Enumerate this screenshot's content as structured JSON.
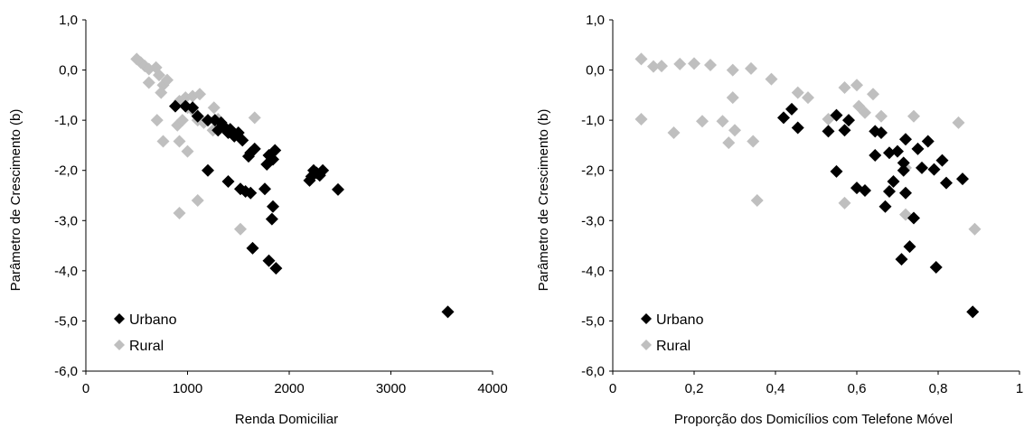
{
  "chart_data": [
    {
      "type": "scatter",
      "xlabel": "Renda Domiciliar",
      "ylabel": "Parâmetro de Crescimento (b)",
      "xlim": [
        0,
        4000
      ],
      "ylim": [
        -6.0,
        1.0
      ],
      "xticks": [
        "0",
        "1000",
        "2000",
        "3000",
        "4000"
      ],
      "yticks": [
        "1,0",
        "0,0",
        "-1,0",
        "-2,0",
        "-3,0",
        "-4,0",
        "-5,0",
        "-6,0"
      ],
      "legend": "bottom-left",
      "grid": false,
      "series": [
        {
          "name": "Urbano",
          "color": "#000000",
          "marker": "diamond",
          "points": [
            [
              880,
              -0.72
            ],
            [
              980,
              -0.72
            ],
            [
              1050,
              -0.75
            ],
            [
              1100,
              -0.92
            ],
            [
              1200,
              -1.0
            ],
            [
              1270,
              -1.0
            ],
            [
              1300,
              -1.2
            ],
            [
              1330,
              -1.05
            ],
            [
              1370,
              -1.15
            ],
            [
              1400,
              -1.25
            ],
            [
              1420,
              -1.18
            ],
            [
              1460,
              -1.32
            ],
            [
              1500,
              -1.25
            ],
            [
              1540,
              -1.4
            ],
            [
              1600,
              -1.72
            ],
            [
              1620,
              -1.65
            ],
            [
              1660,
              -1.57
            ],
            [
              1780,
              -1.88
            ],
            [
              1800,
              -1.7
            ],
            [
              1840,
              -1.78
            ],
            [
              1860,
              -1.6
            ],
            [
              1200,
              -2.0
            ],
            [
              1400,
              -2.22
            ],
            [
              1520,
              -2.37
            ],
            [
              1570,
              -2.42
            ],
            [
              1620,
              -2.45
            ],
            [
              1760,
              -2.37
            ],
            [
              1840,
              -2.72
            ],
            [
              1830,
              -2.97
            ],
            [
              1640,
              -3.55
            ],
            [
              1800,
              -3.8
            ],
            [
              1870,
              -3.95
            ],
            [
              2200,
              -2.2
            ],
            [
              2220,
              -2.12
            ],
            [
              2240,
              -2.0
            ],
            [
              2270,
              -2.05
            ],
            [
              2300,
              -2.1
            ],
            [
              2330,
              -2.0
            ],
            [
              2480,
              -2.38
            ],
            [
              3560,
              -4.82
            ]
          ]
        },
        {
          "name": "Rural",
          "color": "#bfbfbf",
          "marker": "diamond",
          "points": [
            [
              500,
              0.22
            ],
            [
              540,
              0.15
            ],
            [
              580,
              0.08
            ],
            [
              620,
              0.02
            ],
            [
              690,
              0.05
            ],
            [
              620,
              -0.25
            ],
            [
              720,
              -0.1
            ],
            [
              760,
              -0.3
            ],
            [
              800,
              -0.2
            ],
            [
              740,
              -0.45
            ],
            [
              700,
              -1.0
            ],
            [
              760,
              -1.42
            ],
            [
              920,
              -0.62
            ],
            [
              980,
              -0.55
            ],
            [
              1050,
              -0.52
            ],
            [
              1120,
              -0.48
            ],
            [
              1000,
              -0.75
            ],
            [
              900,
              -1.1
            ],
            [
              950,
              -1.0
            ],
            [
              1050,
              -0.8
            ],
            [
              1100,
              -1.0
            ],
            [
              1160,
              -1.05
            ],
            [
              1260,
              -0.75
            ],
            [
              1300,
              -0.98
            ],
            [
              1250,
              -1.2
            ],
            [
              920,
              -1.42
            ],
            [
              1000,
              -1.62
            ],
            [
              1100,
              -2.6
            ],
            [
              920,
              -2.85
            ],
            [
              1660,
              -0.95
            ],
            [
              1520,
              -3.17
            ]
          ]
        }
      ]
    },
    {
      "type": "scatter",
      "xlabel": "Proporção dos Domicílios com Telefone Móvel",
      "ylabel": "Parâmetro de Crescimento (b)",
      "xlim": [
        0,
        1
      ],
      "ylim": [
        -6.0,
        1.0
      ],
      "xticks": [
        "0",
        "0,2",
        "0,4",
        "0,6",
        "0,8",
        "1"
      ],
      "yticks": [
        "1,0",
        "0,0",
        "-1,0",
        "-2,0",
        "-3,0",
        "-4,0",
        "-5,0",
        "-6,0"
      ],
      "legend": "bottom-left",
      "grid": false,
      "series": [
        {
          "name": "Urbano",
          "color": "#000000",
          "marker": "diamond",
          "points": [
            [
              0.42,
              -0.95
            ],
            [
              0.44,
              -0.78
            ],
            [
              0.455,
              -1.15
            ],
            [
              0.53,
              -1.22
            ],
            [
              0.55,
              -0.9
            ],
            [
              0.57,
              -1.2
            ],
            [
              0.58,
              -1.0
            ],
            [
              0.55,
              -2.02
            ],
            [
              0.6,
              -2.35
            ],
            [
              0.62,
              -2.4
            ],
            [
              0.645,
              -1.22
            ],
            [
              0.66,
              -1.25
            ],
            [
              0.645,
              -1.7
            ],
            [
              0.68,
              -1.65
            ],
            [
              0.7,
              -1.62
            ],
            [
              0.69,
              -2.22
            ],
            [
              0.68,
              -2.42
            ],
            [
              0.67,
              -2.72
            ],
            [
              0.72,
              -1.38
            ],
            [
              0.715,
              -1.85
            ],
            [
              0.715,
              -2.0
            ],
            [
              0.72,
              -2.45
            ],
            [
              0.74,
              -2.95
            ],
            [
              0.73,
              -3.52
            ],
            [
              0.71,
              -3.77
            ],
            [
              0.75,
              -1.57
            ],
            [
              0.76,
              -1.95
            ],
            [
              0.775,
              -1.42
            ],
            [
              0.79,
              -1.98
            ],
            [
              0.81,
              -1.8
            ],
            [
              0.82,
              -2.25
            ],
            [
              0.86,
              -2.17
            ],
            [
              0.795,
              -3.93
            ],
            [
              0.885,
              -4.82
            ]
          ]
        },
        {
          "name": "Rural",
          "color": "#bfbfbf",
          "marker": "diamond",
          "points": [
            [
              0.07,
              0.22
            ],
            [
              0.1,
              0.07
            ],
            [
              0.12,
              0.08
            ],
            [
              0.165,
              0.12
            ],
            [
              0.2,
              0.13
            ],
            [
              0.24,
              0.1
            ],
            [
              0.295,
              0.0
            ],
            [
              0.34,
              0.03
            ],
            [
              0.39,
              -0.18
            ],
            [
              0.455,
              -0.45
            ],
            [
              0.48,
              -0.55
            ],
            [
              0.295,
              -0.55
            ],
            [
              0.07,
              -0.98
            ],
            [
              0.15,
              -1.25
            ],
            [
              0.22,
              -1.02
            ],
            [
              0.27,
              -1.02
            ],
            [
              0.285,
              -1.45
            ],
            [
              0.3,
              -1.2
            ],
            [
              0.345,
              -1.42
            ],
            [
              0.355,
              -2.6
            ],
            [
              0.53,
              -0.98
            ],
            [
              0.57,
              -0.35
            ],
            [
              0.6,
              -0.3
            ],
            [
              0.605,
              -0.72
            ],
            [
              0.64,
              -0.48
            ],
            [
              0.62,
              -0.85
            ],
            [
              0.66,
              -0.92
            ],
            [
              0.72,
              -1.95
            ],
            [
              0.74,
              -0.92
            ],
            [
              0.85,
              -1.05
            ],
            [
              0.57,
              -2.65
            ],
            [
              0.72,
              -2.88
            ],
            [
              0.89,
              -3.17
            ]
          ]
        }
      ]
    }
  ]
}
